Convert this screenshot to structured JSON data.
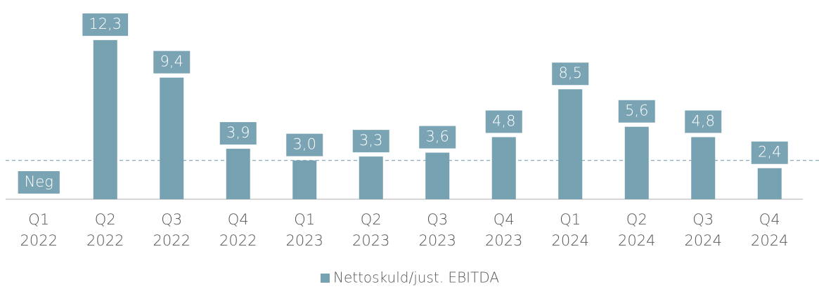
{
  "chart_data": {
    "type": "bar",
    "categories": [
      [
        "Q1",
        "2022"
      ],
      [
        "Q2",
        "2022"
      ],
      [
        "Q3",
        "2022"
      ],
      [
        "Q4",
        "2022"
      ],
      [
        "Q1",
        "2023"
      ],
      [
        "Q2",
        "2023"
      ],
      [
        "Q3",
        "2023"
      ],
      [
        "Q4",
        "2023"
      ],
      [
        "Q1",
        "2024"
      ],
      [
        "Q2",
        "2024"
      ],
      [
        "Q3",
        "2024"
      ],
      [
        "Q4",
        "2024"
      ]
    ],
    "series": [
      {
        "name": "Nettoskuld/just. EBITDA",
        "color": "#76a1b0",
        "values": [
          null,
          12.3,
          9.4,
          3.9,
          3.0,
          3.3,
          3.6,
          4.8,
          8.5,
          5.6,
          4.8,
          2.4
        ],
        "value_labels": [
          "Neg",
          "12,3",
          "9,4",
          "3,9",
          "3,0",
          "3,3",
          "3,6",
          "4,8",
          "8,5",
          "5,6",
          "4,8",
          "2,4"
        ]
      }
    ],
    "reference_line": 3.0,
    "ylim": [
      0,
      15.4
    ],
    "legend": "bottom"
  }
}
